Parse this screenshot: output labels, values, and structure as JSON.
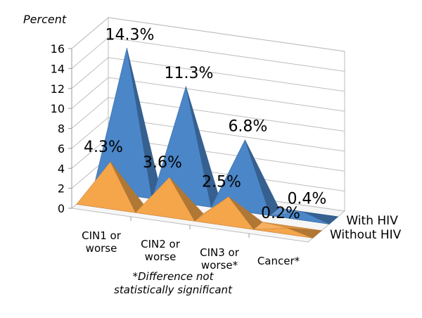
{
  "chart_data": {
    "type": "bar",
    "shape": "3d-pyramid",
    "ylabel": "Percent",
    "ylim": [
      0,
      16
    ],
    "yticks": [
      "0",
      "2",
      "4",
      "6",
      "8",
      "10",
      "12",
      "14",
      "16"
    ],
    "categories": [
      [
        "CIN1 or",
        "worse"
      ],
      [
        "CIN2 or",
        "worse"
      ],
      [
        "CIN3 or",
        "worse*"
      ],
      [
        "Cancer*"
      ]
    ],
    "series": [
      {
        "name": "With HIV",
        "values": [
          14.3,
          11.3,
          6.8,
          0.4
        ],
        "labels": [
          "14.3%",
          "11.3%",
          "6.8%",
          "0.4%"
        ],
        "color": "#4A86C8"
      },
      {
        "name": "Without HIV",
        "values": [
          4.3,
          3.6,
          2.5,
          0.2
        ],
        "labels": [
          "4.3%",
          "3.6%",
          "2.5%",
          "0.2%"
        ],
        "color": "#F5A54A"
      }
    ],
    "gridlines": true,
    "note": [
      "*Difference not",
      "statistically significant"
    ]
  }
}
